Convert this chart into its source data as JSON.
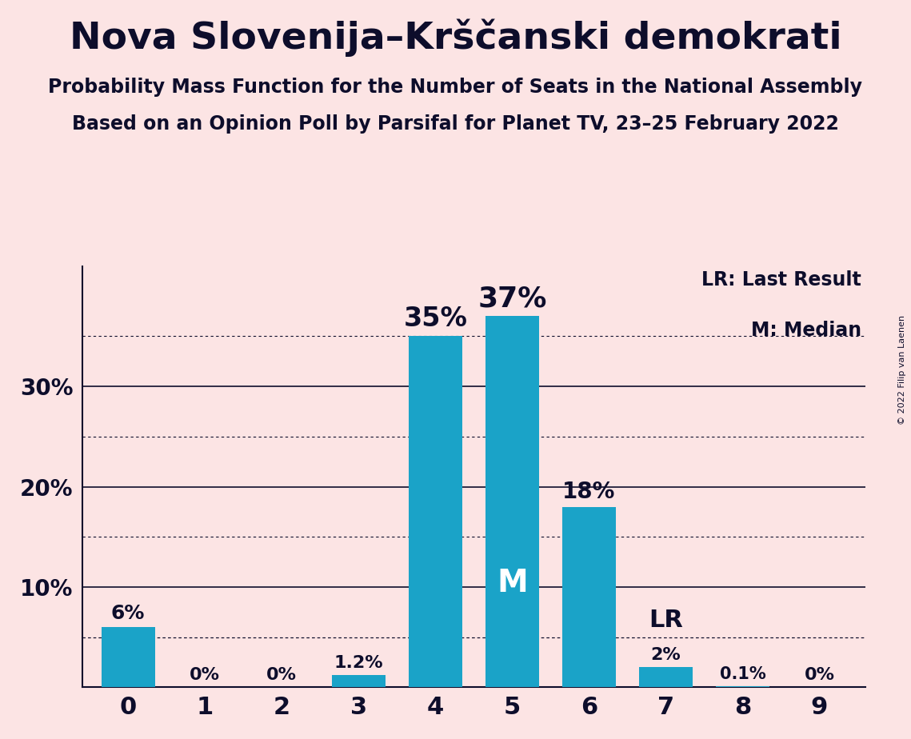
{
  "title": "Nova Slovenija–Krščanski demokrati",
  "subtitle1": "Probability Mass Function for the Number of Seats in the National Assembly",
  "subtitle2": "Based on an Opinion Poll by Parsifal for Planet TV, 23–25 February 2022",
  "copyright": "© 2022 Filip van Laenen",
  "categories": [
    0,
    1,
    2,
    3,
    4,
    5,
    6,
    7,
    8,
    9
  ],
  "values": [
    6,
    0,
    0,
    1.2,
    35,
    37,
    18,
    2,
    0.1,
    0
  ],
  "labels": [
    "6%",
    "0%",
    "0%",
    "1.2%",
    "35%",
    "37%",
    "18%",
    "2%",
    "0.1%",
    "0%"
  ],
  "bar_color": "#1aa3c8",
  "background_color": "#fce4e4",
  "text_color": "#0d0d2b",
  "median_seat": 5,
  "lr_seat": 7,
  "ylim": [
    0,
    42
  ],
  "solid_lines": [
    10,
    20,
    30
  ],
  "dotted_only_lines": [
    5,
    15,
    25,
    35
  ],
  "legend_lr": "LR: Last Result",
  "legend_m": "M: Median"
}
